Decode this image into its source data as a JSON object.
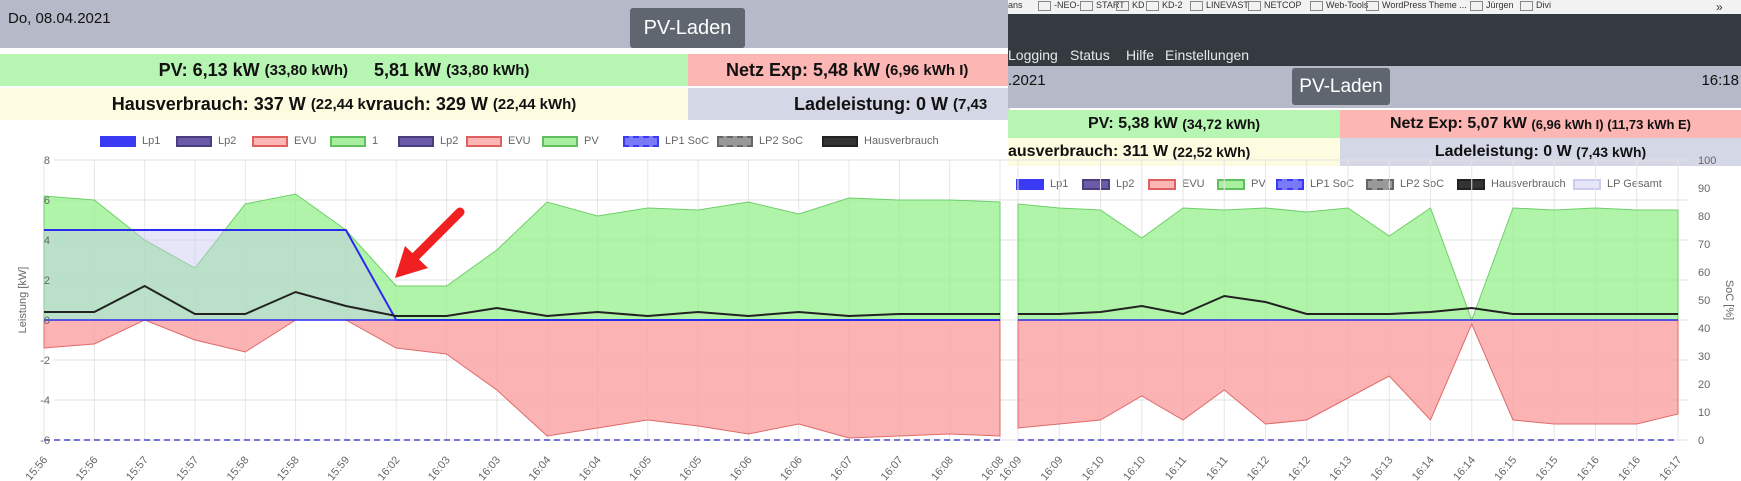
{
  "left": {
    "date": "Do, 08.04.2021",
    "mode_label": "PV-Laden",
    "pv_power": "PV: 6,13 kW",
    "pv_energy": "(33,80 kWh)",
    "pv2_power": "5,81 kW",
    "pv2_energy": "(33,80 kWh)",
    "grid_export": "Netz Exp: 5,48 kW",
    "grid_export_energy": "(6,96 kWh I)",
    "house": "Hausverbrauch: 337 W",
    "house_energy": "(22,44 k",
    "house2": "vrauch: 329 W",
    "house2_energy": "(22,44 kWh)",
    "charge": "Ladeleistung: 0 W",
    "charge_energy": "(7,43",
    "legend": [
      "Lp1",
      "Lp2",
      "EVU",
      "1",
      "Lp2",
      "EVU",
      "PV",
      "LP1 SoC",
      "LP2 SoC",
      "Hausverbrauch"
    ],
    "y_axis_label": "Leistung [kW]",
    "y_ticks": [
      "8",
      "6",
      "4",
      "2",
      "0",
      "-2",
      "-4",
      "-6"
    ],
    "x_ticks": [
      "15:56",
      "15:56",
      "15:57",
      "15:57",
      "15:58",
      "15:58",
      "15:59",
      "16:02",
      "16:03",
      "16:03",
      "16:04",
      "16:04",
      "16:05",
      "16:05",
      "16:06",
      "16:06",
      "16:07",
      "16:07",
      "16:08",
      "16:08"
    ]
  },
  "right": {
    "bookmarks": [
      "ans",
      "-NEO-",
      "START",
      "KD",
      "KD-2",
      "LINEVAST",
      "NETCOP",
      "Web-Tools",
      "WordPress Theme ...",
      "Jürgen",
      "Divi"
    ],
    "bookmarks_overflow": "»",
    "menu": [
      "Logging",
      "Status",
      "Hilfe",
      "Einstellungen"
    ],
    "date": ".2021",
    "time": "16:18",
    "mode_label": "PV-Laden",
    "pv_power": "PV: 5,38 kW",
    "pv_energy": "(34,72 kWh)",
    "grid_export": "Netz Exp: 5,07 kW",
    "grid_export_energy": "(6,96 kWh I) (11,73 kWh E)",
    "house": "ausverbrauch: 311 W",
    "house_energy": "(22,52 kWh)",
    "charge": "Ladeleistung: 0 W",
    "charge_energy": "(7,43 kWh)",
    "legend": [
      "Lp1",
      "Lp2",
      "EVU",
      "PV",
      "LP1 SoC",
      "LP2 SoC",
      "Hausverbrauch",
      "LP Gesamt"
    ],
    "y2_axis_label": "SoC [%]",
    "y2_ticks": [
      "100",
      "90",
      "80",
      "70",
      "60",
      "50",
      "40",
      "30",
      "20",
      "10",
      "0"
    ],
    "x_ticks": [
      "16:09",
      "16:09",
      "16:10",
      "16:10",
      "16:11",
      "16:11",
      "16:12",
      "16:12",
      "16:13",
      "16:13",
      "16:14",
      "16:14",
      "16:15",
      "16:15",
      "16:16",
      "16:16",
      "16:17"
    ]
  },
  "chart_data": [
    {
      "type": "area",
      "xlabel": "",
      "ylabel": "Leistung [kW]",
      "ylim": [
        -6,
        8
      ],
      "x": [
        "15:56",
        "15:56",
        "15:57",
        "15:57",
        "15:58",
        "15:58",
        "15:59",
        "16:02",
        "16:03",
        "16:03",
        "16:04",
        "16:04",
        "16:05",
        "16:05",
        "16:06",
        "16:06",
        "16:07",
        "16:07",
        "16:08",
        "16:08"
      ],
      "series": [
        {
          "name": "PV",
          "values": [
            6.2,
            6.0,
            4.0,
            2.6,
            5.8,
            6.3,
            4.5,
            1.7,
            1.7,
            3.5,
            5.9,
            5.2,
            5.6,
            5.5,
            5.9,
            5.3,
            6.1,
            6.0,
            6.0,
            5.9
          ]
        },
        {
          "name": "EVU",
          "values": [
            -1.4,
            -1.2,
            0.0,
            -1.0,
            -1.6,
            0.0,
            0.0,
            -1.4,
            -1.7,
            -3.5,
            -5.8,
            -5.4,
            -5.0,
            -5.3,
            -5.7,
            -5.2,
            -5.9,
            -5.8,
            -5.7,
            -5.8
          ]
        },
        {
          "name": "Lp1",
          "values": [
            4.5,
            4.5,
            4.5,
            4.5,
            4.5,
            4.5,
            4.5,
            0.0,
            0.0,
            0.0,
            0.0,
            0.0,
            0.0,
            0.0,
            0.0,
            0.0,
            0.0,
            0.0,
            0.0,
            0.0
          ]
        },
        {
          "name": "Hausverbrauch",
          "values": [
            0.4,
            0.4,
            1.7,
            0.3,
            0.3,
            1.4,
            0.7,
            0.2,
            0.2,
            0.6,
            0.2,
            0.4,
            0.2,
            0.4,
            0.2,
            0.4,
            0.2,
            0.3,
            0.3,
            0.3
          ]
        }
      ]
    },
    {
      "type": "area",
      "ylabel": "SoC [%]",
      "ylim": [
        -6,
        8
      ],
      "y2lim": [
        0,
        100
      ],
      "x": [
        "16:09",
        "16:09",
        "16:10",
        "16:10",
        "16:11",
        "16:11",
        "16:12",
        "16:12",
        "16:13",
        "16:13",
        "16:14",
        "16:14",
        "16:15",
        "16:15",
        "16:16",
        "16:16",
        "16:17"
      ],
      "series": [
        {
          "name": "PV",
          "values": [
            5.8,
            5.6,
            5.5,
            4.1,
            5.6,
            5.5,
            5.6,
            5.4,
            5.6,
            4.2,
            5.6,
            0.0,
            5.6,
            5.5,
            5.6,
            5.5,
            5.5
          ]
        },
        {
          "name": "EVU",
          "values": [
            -5.4,
            -5.2,
            -5.0,
            -3.8,
            -5.0,
            -3.5,
            -5.2,
            -5.0,
            -3.9,
            -2.8,
            -5.0,
            -0.2,
            -5.0,
            -5.2,
            -5.2,
            -5.2,
            -4.7
          ]
        },
        {
          "name": "Hausverbrauch",
          "values": [
            0.3,
            0.3,
            0.4,
            0.7,
            0.3,
            1.2,
            0.9,
            0.3,
            0.3,
            0.3,
            0.4,
            0.6,
            0.3,
            0.3,
            0.3,
            0.3,
            0.3
          ]
        }
      ]
    }
  ]
}
